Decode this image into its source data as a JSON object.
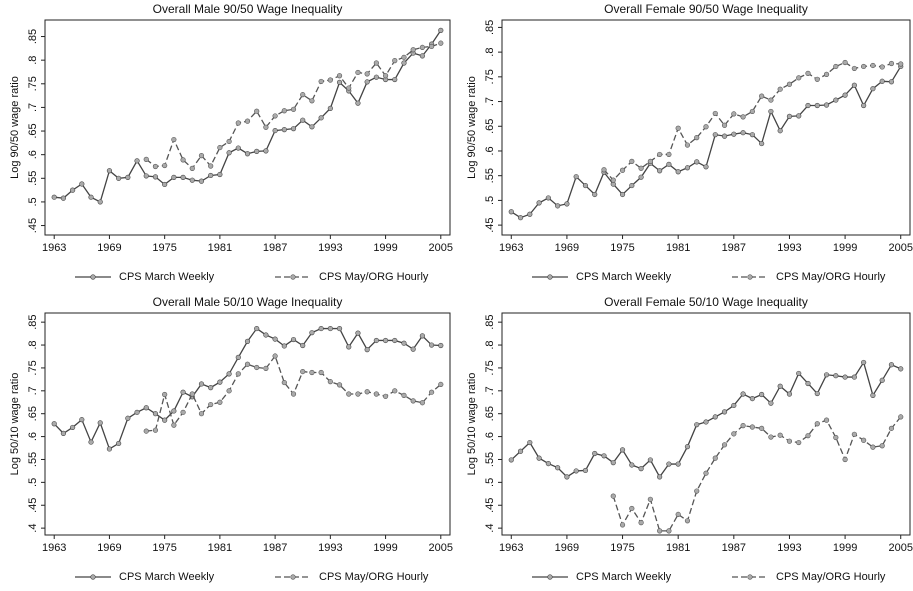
{
  "chart_data": [
    {
      "type": "line",
      "title": "Overall Male 90/50  Wage Inequality",
      "ylabel": "Log 90/50 wage ratio",
      "x": [
        1963,
        1964,
        1965,
        1966,
        1967,
        1968,
        1969,
        1970,
        1971,
        1972,
        1973,
        1974,
        1975,
        1976,
        1977,
        1978,
        1979,
        1980,
        1981,
        1982,
        1983,
        1984,
        1985,
        1986,
        1987,
        1988,
        1989,
        1990,
        1991,
        1992,
        1993,
        1994,
        1995,
        1996,
        1997,
        1998,
        1999,
        2000,
        2001,
        2002,
        2003,
        2004,
        2005
      ],
      "xlim": [
        1962,
        2006
      ],
      "xticks": [
        1963,
        1969,
        1975,
        1981,
        1987,
        1993,
        1999,
        2005
      ],
      "ylim": [
        0.43,
        0.885
      ],
      "yticks": [
        {
          "value": 0.45,
          "label": ".45"
        },
        {
          "value": 0.5,
          "label": ".5"
        },
        {
          "value": 0.55,
          "label": ".55"
        },
        {
          "value": 0.6,
          "label": ".6"
        },
        {
          "value": 0.65,
          "label": ".65"
        },
        {
          "value": 0.7,
          "label": ".7"
        },
        {
          "value": 0.75,
          "label": ".75"
        },
        {
          "value": 0.8,
          "label": ".8"
        },
        {
          "value": 0.85,
          "label": ".85"
        }
      ],
      "series": [
        {
          "name": "CPS March Weekly",
          "color": "#444444",
          "dash": "solid",
          "values": [
            0.51,
            0.508,
            0.525,
            0.538,
            0.51,
            0.5,
            0.566,
            0.55,
            0.552,
            0.587,
            0.555,
            0.553,
            0.537,
            0.552,
            0.552,
            0.546,
            0.544,
            0.556,
            0.558,
            0.604,
            0.614,
            0.602,
            0.607,
            0.608,
            0.651,
            0.653,
            0.655,
            0.673,
            0.659,
            0.678,
            0.698,
            0.753,
            0.735,
            0.709,
            0.754,
            0.764,
            0.759,
            0.759,
            0.794,
            0.815,
            0.809,
            0.834,
            0.863
          ]
        },
        {
          "name": "CPS May/ORG Hourly",
          "color": "#555555",
          "dash": "dashed",
          "values": [
            null,
            null,
            null,
            null,
            null,
            null,
            null,
            null,
            null,
            null,
            0.59,
            0.575,
            0.577,
            0.632,
            0.589,
            0.571,
            0.598,
            0.576,
            0.615,
            0.628,
            0.667,
            0.671,
            0.692,
            0.658,
            0.682,
            0.693,
            0.696,
            0.727,
            0.714,
            0.755,
            0.758,
            0.767,
            0.741,
            0.774,
            0.771,
            0.794,
            0.767,
            0.799,
            0.806,
            0.822,
            0.827,
            0.829,
            0.836
          ]
        }
      ]
    },
    {
      "type": "line",
      "title": "Overall Female 90/50  Wage Inequality",
      "ylabel": "Log 90/50 wage ratio",
      "x": [
        1963,
        1964,
        1965,
        1966,
        1967,
        1968,
        1969,
        1970,
        1971,
        1972,
        1973,
        1974,
        1975,
        1976,
        1977,
        1978,
        1979,
        1980,
        1981,
        1982,
        1983,
        1984,
        1985,
        1986,
        1987,
        1988,
        1989,
        1990,
        1991,
        1992,
        1993,
        1994,
        1995,
        1996,
        1997,
        1998,
        1999,
        2000,
        2001,
        2002,
        2003,
        2004,
        2005
      ],
      "xlim": [
        1962,
        2006
      ],
      "xticks": [
        1963,
        1969,
        1975,
        1981,
        1987,
        1993,
        1999,
        2005
      ],
      "ylim": [
        0.43,
        0.865
      ],
      "yticks": [
        {
          "value": 0.45,
          "label": ".45"
        },
        {
          "value": 0.5,
          "label": ".5"
        },
        {
          "value": 0.55,
          "label": ".55"
        },
        {
          "value": 0.6,
          "label": ".6"
        },
        {
          "value": 0.65,
          "label": ".65"
        },
        {
          "value": 0.7,
          "label": ".7"
        },
        {
          "value": 0.75,
          "label": ".75"
        },
        {
          "value": 0.8,
          "label": ".8"
        },
        {
          "value": 0.85,
          "label": ".85"
        }
      ],
      "series": [
        {
          "name": "CPS March Weekly",
          "color": "#444444",
          "dash": "solid",
          "values": [
            0.477,
            0.465,
            0.472,
            0.495,
            0.505,
            0.489,
            0.493,
            0.548,
            0.53,
            0.512,
            0.557,
            0.533,
            0.512,
            0.53,
            0.547,
            0.575,
            0.56,
            0.573,
            0.558,
            0.566,
            0.578,
            0.568,
            0.633,
            0.63,
            0.634,
            0.637,
            0.633,
            0.615,
            0.68,
            0.641,
            0.67,
            0.671,
            0.692,
            0.692,
            0.693,
            0.703,
            0.713,
            0.733,
            0.692,
            0.726,
            0.741,
            0.74,
            0.771
          ]
        },
        {
          "name": "CPS May/ORG Hourly",
          "color": "#555555",
          "dash": "dashed",
          "values": [
            null,
            null,
            null,
            null,
            null,
            null,
            null,
            null,
            null,
            null,
            0.562,
            0.541,
            0.561,
            0.579,
            0.565,
            0.579,
            0.593,
            0.593,
            0.646,
            0.612,
            0.627,
            0.649,
            0.676,
            0.652,
            0.675,
            0.669,
            0.68,
            0.711,
            0.703,
            0.725,
            0.735,
            0.748,
            0.757,
            0.745,
            0.755,
            0.771,
            0.779,
            0.767,
            0.771,
            0.773,
            0.77,
            0.777,
            0.776
          ]
        }
      ]
    },
    {
      "type": "line",
      "title": "Overall Male 50/10  Wage Inequality",
      "ylabel": "Log 50/10 wage ratio",
      "x": [
        1963,
        1964,
        1965,
        1966,
        1967,
        1968,
        1969,
        1970,
        1971,
        1972,
        1973,
        1974,
        1975,
        1976,
        1977,
        1978,
        1979,
        1980,
        1981,
        1982,
        1983,
        1984,
        1985,
        1986,
        1987,
        1988,
        1989,
        1990,
        1991,
        1992,
        1993,
        1994,
        1995,
        1996,
        1997,
        1998,
        1999,
        2000,
        2001,
        2002,
        2003,
        2004,
        2005
      ],
      "xlim": [
        1962,
        2006
      ],
      "xticks": [
        1963,
        1969,
        1975,
        1981,
        1987,
        1993,
        1999,
        2005
      ],
      "ylim": [
        0.385,
        0.87
      ],
      "yticks": [
        {
          "value": 0.4,
          "label": ".4"
        },
        {
          "value": 0.45,
          "label": ".45"
        },
        {
          "value": 0.5,
          "label": ".5"
        },
        {
          "value": 0.55,
          "label": ".55"
        },
        {
          "value": 0.6,
          "label": ".6"
        },
        {
          "value": 0.65,
          "label": ".65"
        },
        {
          "value": 0.7,
          "label": ".7"
        },
        {
          "value": 0.75,
          "label": ".75"
        },
        {
          "value": 0.8,
          "label": ".8"
        },
        {
          "value": 0.85,
          "label": ".85"
        }
      ],
      "series": [
        {
          "name": "CPS March Weekly",
          "color": "#444444",
          "dash": "solid",
          "values": [
            0.628,
            0.607,
            0.62,
            0.637,
            0.588,
            0.63,
            0.573,
            0.585,
            0.64,
            0.653,
            0.663,
            0.65,
            0.636,
            0.656,
            0.697,
            0.687,
            0.715,
            0.707,
            0.719,
            0.737,
            0.773,
            0.808,
            0.836,
            0.822,
            0.813,
            0.798,
            0.812,
            0.799,
            0.827,
            0.836,
            0.836,
            0.836,
            0.796,
            0.826,
            0.79,
            0.81,
            0.81,
            0.81,
            0.804,
            0.791,
            0.82,
            0.8,
            0.799
          ]
        },
        {
          "name": "CPS May/ORG Hourly",
          "color": "#555555",
          "dash": "dashed",
          "values": [
            null,
            null,
            null,
            null,
            null,
            null,
            null,
            null,
            null,
            null,
            0.612,
            0.614,
            0.692,
            0.625,
            0.653,
            0.693,
            0.65,
            0.67,
            0.675,
            0.7,
            0.737,
            0.758,
            0.751,
            0.749,
            0.776,
            0.718,
            0.693,
            0.742,
            0.74,
            0.74,
            0.72,
            0.713,
            0.693,
            0.693,
            0.698,
            0.693,
            0.688,
            0.7,
            0.69,
            0.678,
            0.674,
            0.697,
            0.714
          ]
        }
      ]
    },
    {
      "type": "line",
      "title": "Overall Female 50/10  Wage Inequality",
      "ylabel": "Log 50/10 wage ratio",
      "x": [
        1963,
        1964,
        1965,
        1966,
        1967,
        1968,
        1969,
        1970,
        1971,
        1972,
        1973,
        1974,
        1975,
        1976,
        1977,
        1978,
        1979,
        1980,
        1981,
        1982,
        1983,
        1984,
        1985,
        1986,
        1987,
        1988,
        1989,
        1990,
        1991,
        1992,
        1993,
        1994,
        1995,
        1996,
        1997,
        1998,
        1999,
        2000,
        2001,
        2002,
        2003,
        2004,
        2005
      ],
      "xlim": [
        1962,
        2006
      ],
      "xticks": [
        1963,
        1969,
        1975,
        1981,
        1987,
        1993,
        1999,
        2005
      ],
      "ylim": [
        0.385,
        0.87
      ],
      "yticks": [
        {
          "value": 0.4,
          "label": ".4"
        },
        {
          "value": 0.45,
          "label": ".45"
        },
        {
          "value": 0.5,
          "label": ".5"
        },
        {
          "value": 0.55,
          "label": ".55"
        },
        {
          "value": 0.6,
          "label": ".6"
        },
        {
          "value": 0.65,
          "label": ".65"
        },
        {
          "value": 0.7,
          "label": ".7"
        },
        {
          "value": 0.75,
          "label": ".75"
        },
        {
          "value": 0.8,
          "label": ".8"
        },
        {
          "value": 0.85,
          "label": ".85"
        }
      ],
      "series": [
        {
          "name": "CPS March Weekly",
          "color": "#444444",
          "dash": "solid",
          "values": [
            0.549,
            0.568,
            0.587,
            0.553,
            0.541,
            0.532,
            0.512,
            0.525,
            0.526,
            0.563,
            0.558,
            0.543,
            0.571,
            0.538,
            0.53,
            0.549,
            0.512,
            0.54,
            0.54,
            0.578,
            0.626,
            0.632,
            0.643,
            0.654,
            0.668,
            0.693,
            0.683,
            0.692,
            0.673,
            0.71,
            0.693,
            0.738,
            0.716,
            0.694,
            0.735,
            0.733,
            0.73,
            0.73,
            0.762,
            0.69,
            0.723,
            0.757,
            0.748
          ]
        },
        {
          "name": "CPS May/ORG Hourly",
          "color": "#555555",
          "dash": "dashed",
          "values": [
            null,
            null,
            null,
            null,
            null,
            null,
            null,
            null,
            null,
            null,
            null,
            0.47,
            0.407,
            0.443,
            0.412,
            0.463,
            0.394,
            0.394,
            0.43,
            0.416,
            0.481,
            0.52,
            0.553,
            0.582,
            0.606,
            0.624,
            0.621,
            0.618,
            0.599,
            0.603,
            0.59,
            0.587,
            0.602,
            0.628,
            0.636,
            0.598,
            0.55,
            0.605,
            0.592,
            0.577,
            0.58,
            0.618,
            0.643
          ]
        }
      ]
    }
  ]
}
